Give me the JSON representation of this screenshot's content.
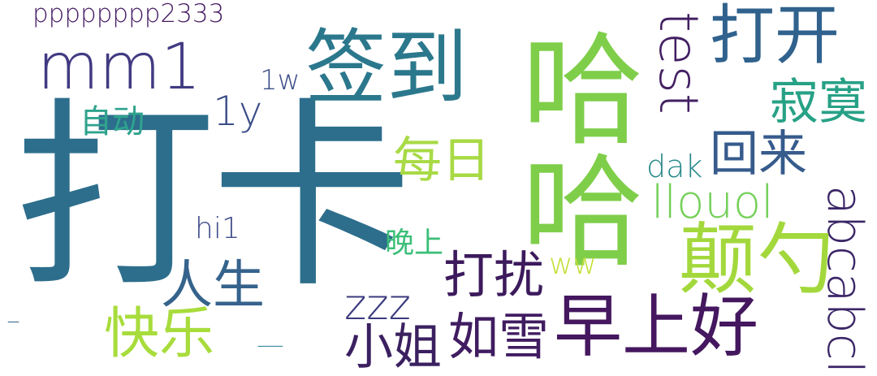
{
  "words": {
    "daka": {
      "text": "打卡",
      "color": "#2d6e8c"
    },
    "xiao": {
      "text": "哈哈",
      "color": "#7fce4a"
    },
    "qiandao": {
      "text": "签到",
      "color": "#2b788d"
    },
    "mm1": {
      "text": "mm1",
      "color": "#413a82"
    },
    "test": {
      "text": "test",
      "color": "#421f62"
    },
    "dakai": {
      "text": "打开",
      "color": "#30628d"
    },
    "pp": {
      "text": "pppppppp2333",
      "color": "#451a62"
    },
    "one_y": {
      "text": "1y",
      "color": "#3b4d87"
    },
    "one_w": {
      "text": "1w",
      "color": "#3b4d87"
    },
    "zidong": {
      "text": "自动",
      "color": "#2fa38d"
    },
    "jimo": {
      "text": "寂寞",
      "color": "#27a186"
    },
    "meiri": {
      "text": "每日",
      "color": "#a8da45"
    },
    "huilai": {
      "text": "回来",
      "color": "#365b8c"
    },
    "dak": {
      "text": "dak",
      "color": "#2a898b"
    },
    "llouol": {
      "text": "llouol",
      "color": "#76d05a"
    },
    "abcabcl": {
      "text": "abcabcl",
      "color": "#3b2667"
    },
    "hi1": {
      "text": "hi1",
      "color": "#3f4b88"
    },
    "wanshang": {
      "text": "晚上",
      "color": "#3bbf78"
    },
    "dianjun": {
      "text": "颠勺",
      "color": "#a3d83c"
    },
    "rensheng": {
      "text": "人生",
      "color": "#35638c"
    },
    "darao": {
      "text": "打扰",
      "color": "#3c1a5c"
    },
    "ww": {
      "text": "ww",
      "color": "#c4df37"
    },
    "zzz": {
      "text": "zzz",
      "color": "#3b3a7e"
    },
    "zaoshang": {
      "text": "早上好",
      "color": "#44175f"
    },
    "dash1": {
      "text": "_",
      "color": "#2c5f86"
    },
    "kuaile": {
      "text": "快乐",
      "color": "#a8dc3c"
    },
    "dash2": {
      "text": "__",
      "color": "#3b8fa0"
    },
    "xiaojie": {
      "text": "小姐",
      "color": "#3b2060"
    },
    "ruxue": {
      "text": "如雪",
      "color": "#401c61"
    }
  }
}
